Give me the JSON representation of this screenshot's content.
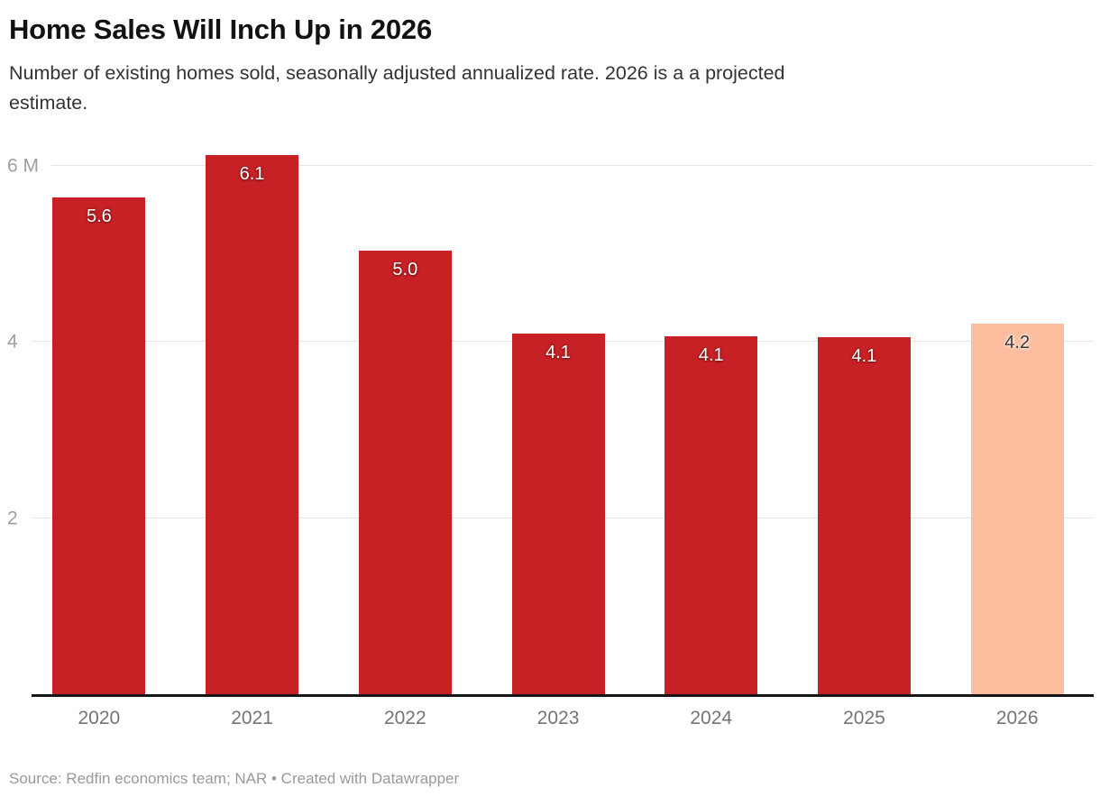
{
  "header": {
    "title": "Home Sales Will Inch Up in 2026",
    "subtitle": "Number of existing homes sold, seasonally adjusted annualized rate. 2026 is a a projected estimate.",
    "subtitle_lines": [
      "Number of existing homes sold, seasonally adjusted annualized rate. 2026 is a a projected",
      "estimate."
    ]
  },
  "footer": {
    "text": "Source: Redfin economics team; NAR • Created with Datawrapper"
  },
  "colors": {
    "bar": "#c72125",
    "highlight_bar": "#fcbc9e",
    "gridline": "#e5e5e5",
    "baseline": "#161616",
    "y_tick_text": "#9e9e9e",
    "x_tick_text": "#747474",
    "label_on_red": "#ffffff",
    "label_on_highlight": "#383838"
  },
  "chart_data": {
    "type": "bar",
    "title": "Home Sales Will Inch Up in 2026",
    "subtitle": "Number of existing homes sold, seasonally adjusted annualized rate. 2026 is a a projected estimate.",
    "categories": [
      "2020",
      "2021",
      "2022",
      "2023",
      "2024",
      "2025",
      "2026"
    ],
    "values": [
      5.6,
      6.1,
      5.0,
      4.1,
      4.1,
      4.1,
      4.2
    ],
    "values_precise": [
      5.64,
      6.12,
      5.03,
      4.09,
      4.06,
      4.05,
      4.2
    ],
    "data_labels": [
      "5.6",
      "6.1",
      "5.0",
      "4.1",
      "4.1",
      "4.1",
      "4.2"
    ],
    "highlight_index": 6,
    "highlight_meaning": "2026 projected estimate shown in lighter color",
    "xlabel": "",
    "ylabel": "",
    "unit": "M",
    "ylim": [
      0,
      6.2
    ],
    "yticks": [
      {
        "value": 2,
        "label": "2",
        "line_indent": 10
      },
      {
        "value": 4,
        "label": "4",
        "line_indent": 10
      },
      {
        "value": 6,
        "label": "6 M",
        "line_indent": 32
      }
    ],
    "grid": "horizontal",
    "legend": "none"
  }
}
